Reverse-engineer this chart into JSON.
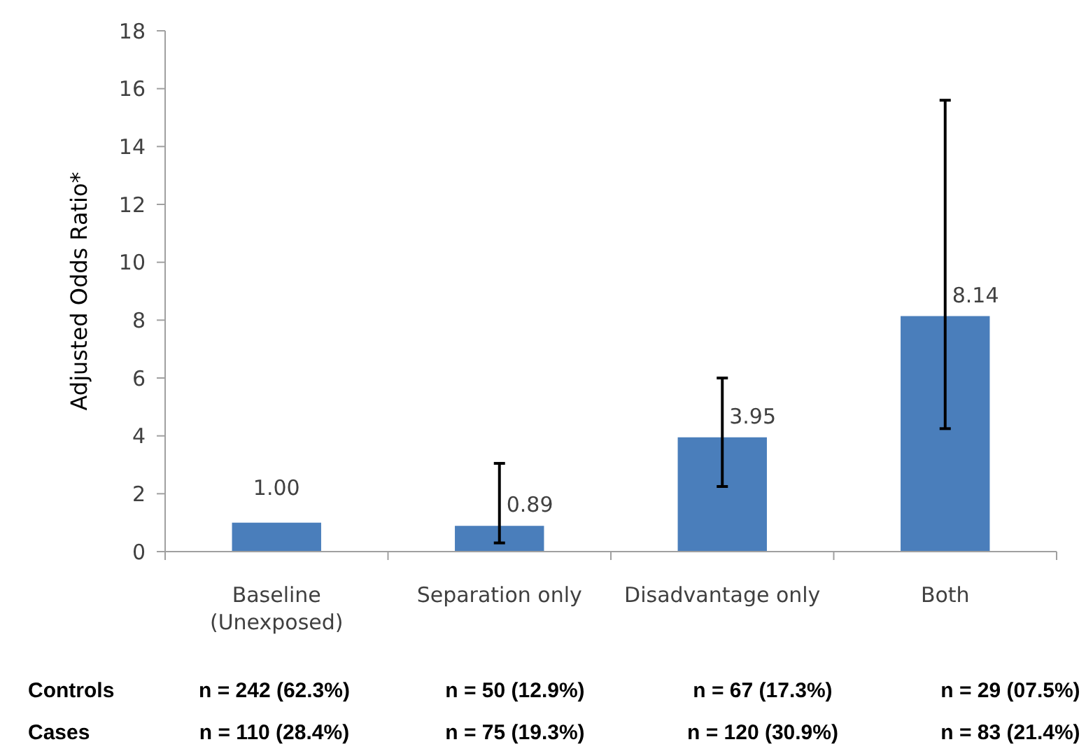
{
  "chart_data": {
    "type": "bar",
    "ylabel": "Adjusted Odds Ratio*",
    "categories": [
      "Baseline\n(Unexposed)",
      "Separation only",
      "Disadvantage only",
      "Both"
    ],
    "values": [
      1.0,
      0.89,
      3.95,
      8.14
    ],
    "errors": [
      null,
      [
        0.3,
        3.05
      ],
      [
        2.25,
        6.0
      ],
      [
        4.25,
        15.6
      ]
    ],
    "value_labels": [
      "1.00",
      "0.89",
      "3.95",
      "8.14"
    ],
    "color": "#4a7ebb",
    "ylim": [
      0,
      18
    ],
    "yticks": [
      0,
      2,
      4,
      6,
      8,
      10,
      12,
      14,
      16,
      18
    ],
    "grid": false,
    "annotations": [
      "Controls",
      "n = 242 (62.3%)",
      "n = 50 (12.9%)",
      "n = 67 (17.3%)",
      "n = 29 (07.5%)",
      "Cases",
      "n = 110 (28.4%)",
      "n = 75 (19.3%)",
      "n = 120 (30.9%)",
      "n = 83 (21.4%)"
    ]
  }
}
